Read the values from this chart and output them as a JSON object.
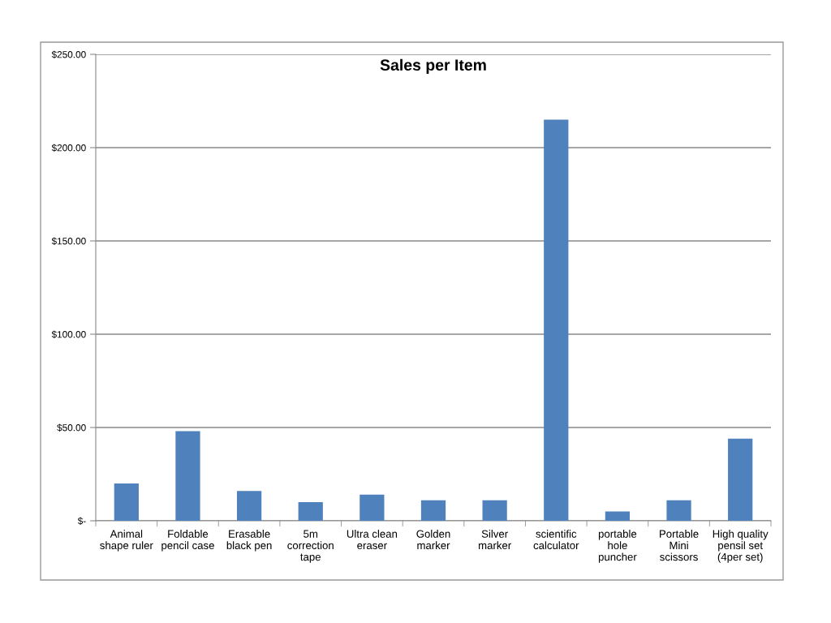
{
  "chart_data": {
    "type": "bar",
    "title": "Sales per Item",
    "categories": [
      "Animal\nshape ruler",
      "Foldable\npencil case",
      "Erasable\nblack pen",
      "5m\ncorrection\ntape",
      "Ultra clean\neraser",
      "Golden\nmarker",
      "Silver\nmarker",
      "scientific\ncalculator",
      "portable\nhole\npuncher",
      "Portable\nMini\nscissors",
      "High quality\npensil set\n(4per set)"
    ],
    "values": [
      20,
      48,
      16,
      10,
      14,
      11,
      11,
      215,
      5,
      11,
      44
    ],
    "color": "#4f81bd",
    "ylim": [
      0,
      250
    ],
    "yticks": [
      {
        "value": 0,
        "label": "$-"
      },
      {
        "value": 50,
        "label": "$50.00"
      },
      {
        "value": 100,
        "label": "$100.00"
      },
      {
        "value": 150,
        "label": "$150.00"
      },
      {
        "value": 200,
        "label": "$200.00"
      },
      {
        "value": 250,
        "label": "$250.00"
      }
    ],
    "grid": "y",
    "legend": false
  }
}
